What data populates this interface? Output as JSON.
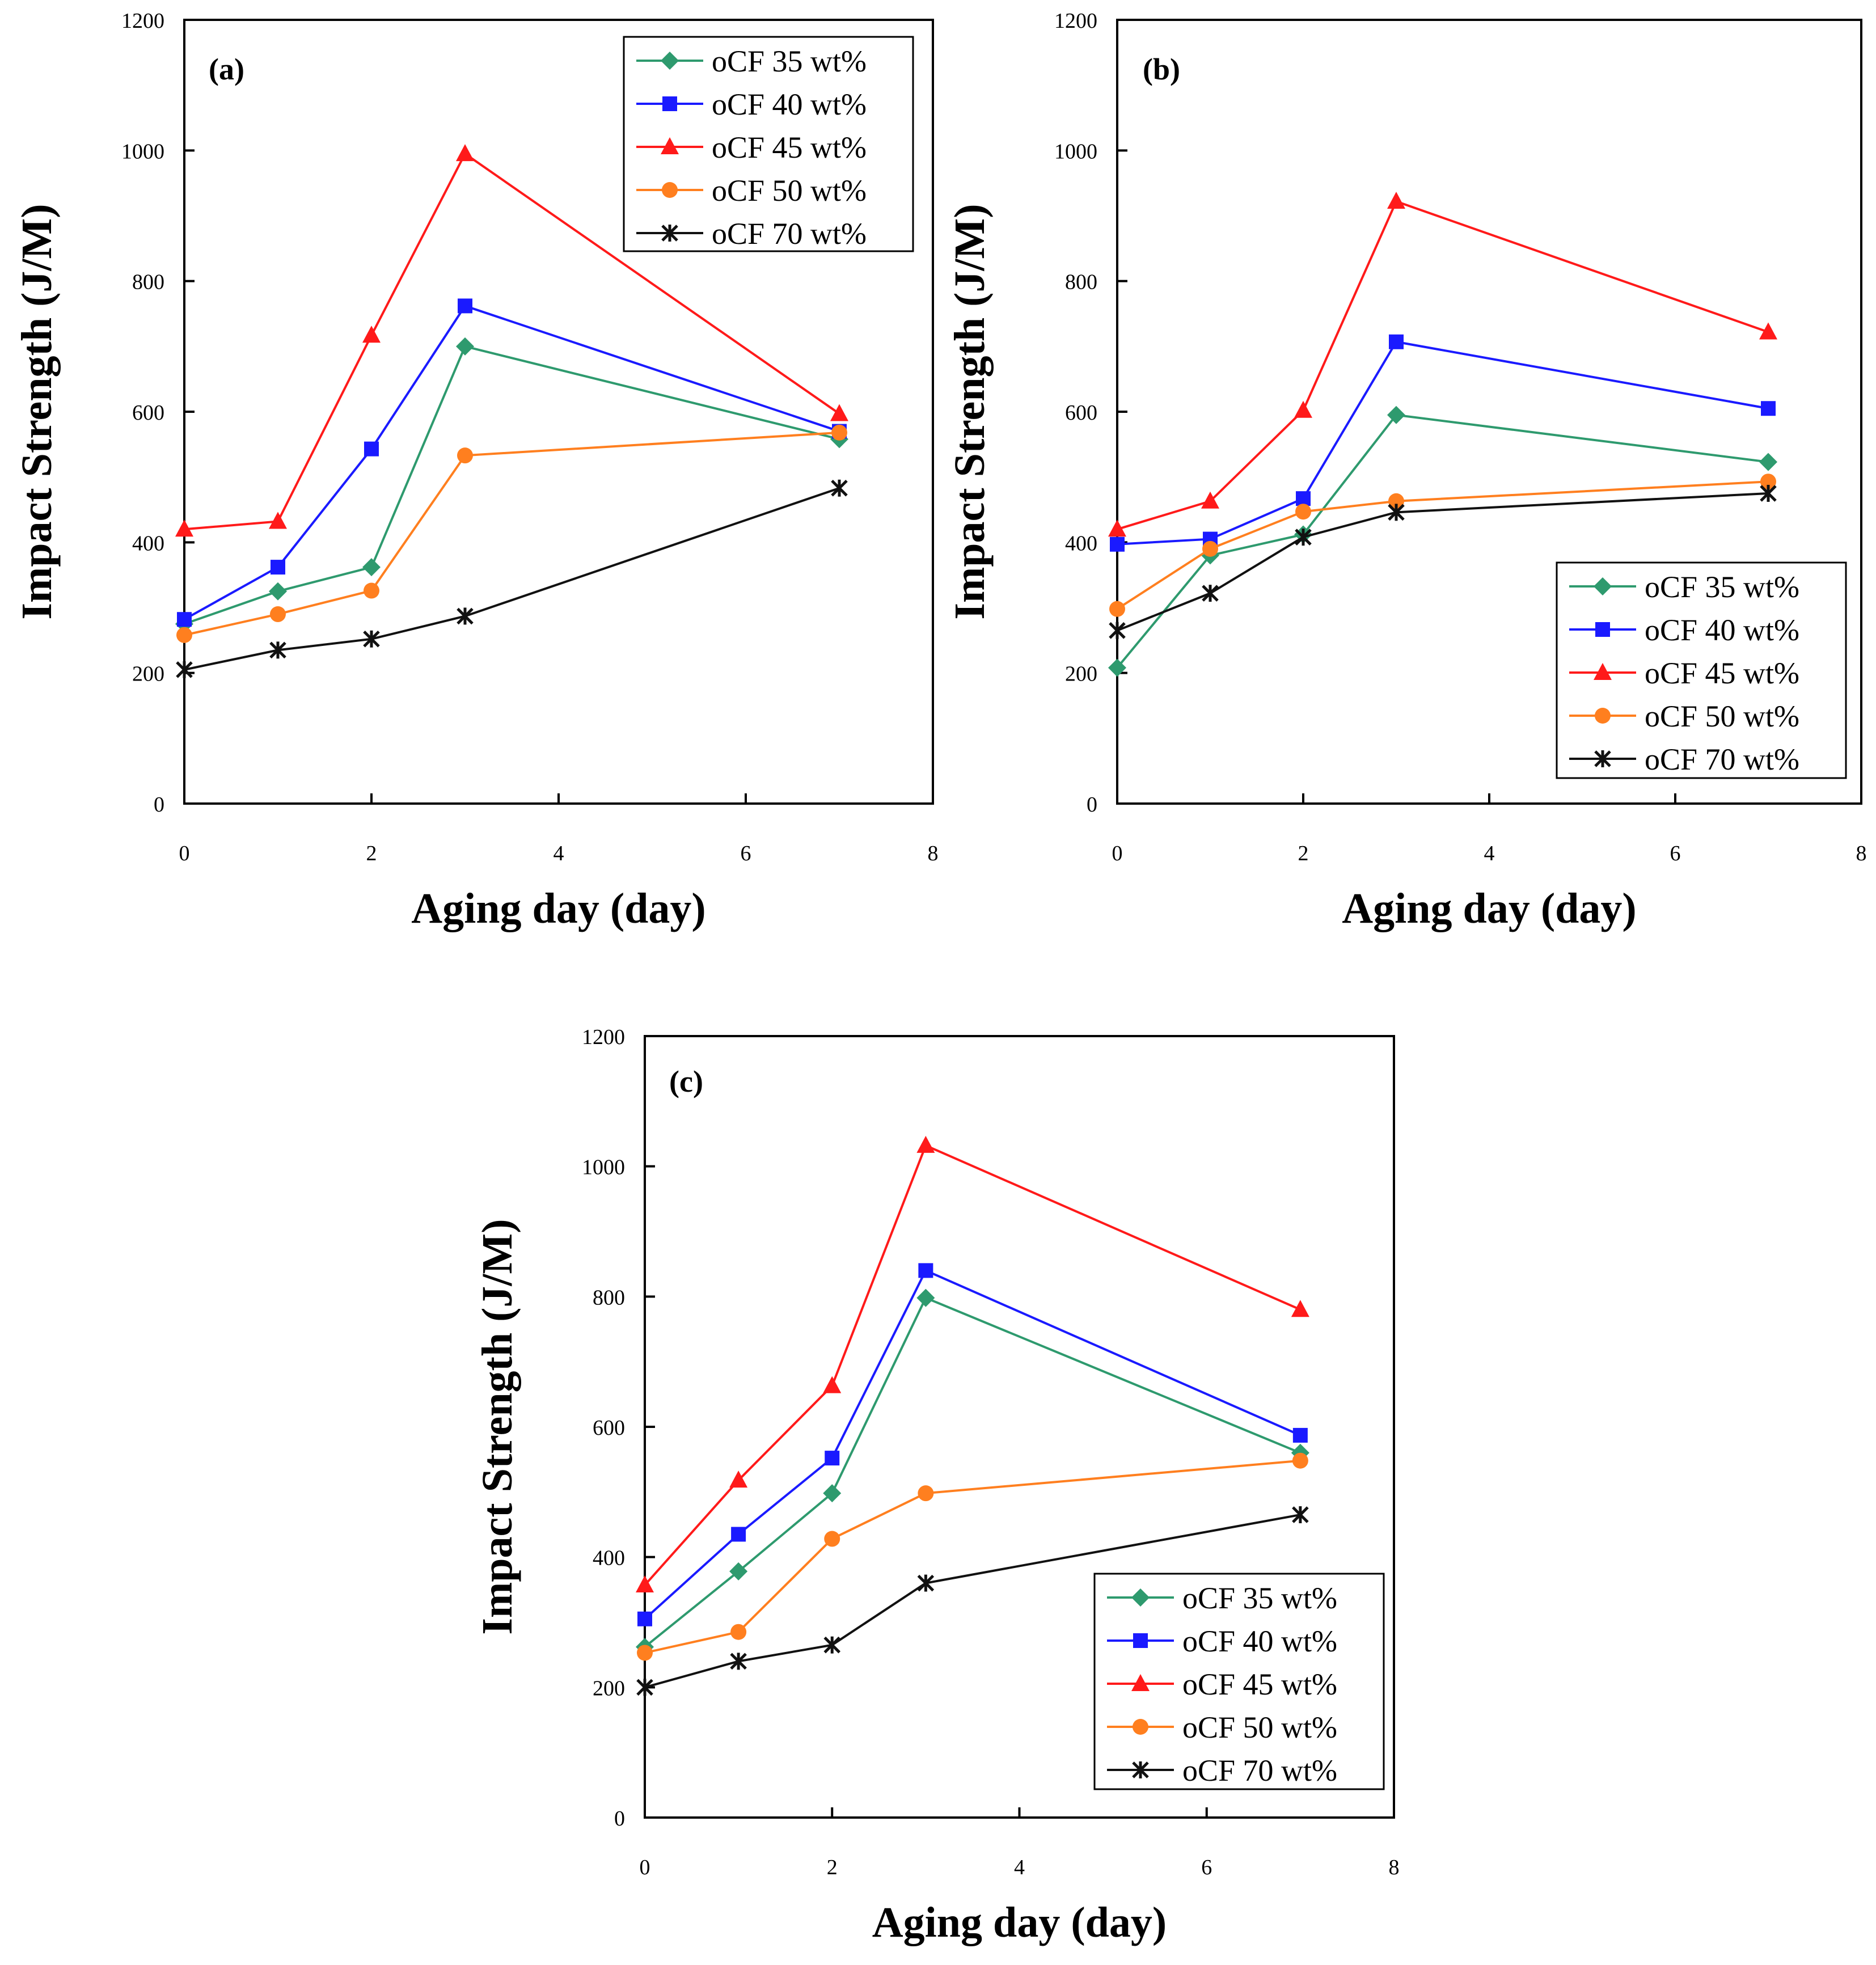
{
  "chart_data": [
    {
      "type": "line",
      "panel_label": "(a)",
      "xlabel": "Aging day (day)",
      "ylabel": "Impact Strength (J/M)",
      "xlim": [
        0,
        8
      ],
      "ylim": [
        0,
        1200
      ],
      "x_ticks": [
        "0",
        "2",
        "4",
        "6",
        "8"
      ],
      "y_ticks": [
        "0",
        "200",
        "400",
        "600",
        "800",
        "1000",
        "1200"
      ],
      "x": [
        0,
        1,
        2,
        3,
        7
      ],
      "legend_position": "top-right",
      "series": [
        {
          "name": "oCF 35 wt%",
          "color": "#2e9a6e",
          "marker": "diamond",
          "values": [
            275,
            325,
            362,
            700,
            558
          ]
        },
        {
          "name": "oCF 40 wt%",
          "color": "#1a1aff",
          "marker": "square",
          "values": [
            282,
            362,
            543,
            762,
            570
          ]
        },
        {
          "name": "oCF 45 wt%",
          "color": "#ff1a1a",
          "marker": "triangle",
          "values": [
            420,
            432,
            717,
            995,
            597
          ]
        },
        {
          "name": "oCF 50 wt%",
          "color": "#ff7f1f",
          "marker": "circle",
          "values": [
            258,
            290,
            326,
            533,
            568
          ]
        },
        {
          "name": "oCF 70 wt%",
          "color": "#111111",
          "marker": "star",
          "values": [
            205,
            235,
            252,
            287,
            483
          ]
        }
      ]
    },
    {
      "type": "line",
      "panel_label": "(b)",
      "xlabel": "Aging day (day)",
      "ylabel": "Impact Strength (J/M)",
      "xlim": [
        0,
        8
      ],
      "ylim": [
        0,
        1200
      ],
      "x_ticks": [
        "0",
        "2",
        "4",
        "6",
        "8"
      ],
      "y_ticks": [
        "0",
        "200",
        "400",
        "600",
        "800",
        "1000",
        "1200"
      ],
      "x": [
        0,
        1,
        2,
        3,
        7
      ],
      "legend_position": "bottom-right",
      "series": [
        {
          "name": "oCF 35 wt%",
          "color": "#2e9a6e",
          "marker": "diamond",
          "values": [
            208,
            380,
            412,
            595,
            523
          ]
        },
        {
          "name": "oCF 40 wt%",
          "color": "#1a1aff",
          "marker": "square",
          "values": [
            397,
            405,
            467,
            707,
            605
          ]
        },
        {
          "name": "oCF 45 wt%",
          "color": "#ff1a1a",
          "marker": "triangle",
          "values": [
            420,
            463,
            602,
            922,
            722
          ]
        },
        {
          "name": "oCF 50 wt%",
          "color": "#ff7f1f",
          "marker": "circle",
          "values": [
            298,
            390,
            447,
            463,
            493
          ]
        },
        {
          "name": "oCF 70 wt%",
          "color": "#111111",
          "marker": "star",
          "values": [
            265,
            322,
            408,
            446,
            475
          ]
        }
      ]
    },
    {
      "type": "line",
      "panel_label": "(c)",
      "xlabel": "Aging day (day)",
      "ylabel": "Impact Strength (J/M)",
      "xlim": [
        0,
        8
      ],
      "ylim": [
        0,
        1200
      ],
      "x_ticks": [
        "0",
        "2",
        "4",
        "6",
        "8"
      ],
      "y_ticks": [
        "0",
        "200",
        "400",
        "600",
        "800",
        "1000",
        "1200"
      ],
      "x": [
        0,
        1,
        2,
        3,
        7
      ],
      "legend_position": "bottom-right",
      "series": [
        {
          "name": "oCF 35 wt%",
          "color": "#2e9a6e",
          "marker": "diamond",
          "values": [
            262,
            378,
            498,
            798,
            560
          ]
        },
        {
          "name": "oCF 40 wt%",
          "color": "#1a1aff",
          "marker": "square",
          "values": [
            305,
            435,
            552,
            840,
            587
          ]
        },
        {
          "name": "oCF 45 wt%",
          "color": "#ff1a1a",
          "marker": "triangle",
          "values": [
            357,
            518,
            663,
            1032,
            780
          ]
        },
        {
          "name": "oCF 50 wt%",
          "color": "#ff7f1f",
          "marker": "circle",
          "values": [
            253,
            285,
            428,
            498,
            548
          ]
        },
        {
          "name": "oCF 70 wt%",
          "color": "#111111",
          "marker": "star",
          "values": [
            200,
            240,
            265,
            360,
            465
          ]
        }
      ]
    }
  ]
}
